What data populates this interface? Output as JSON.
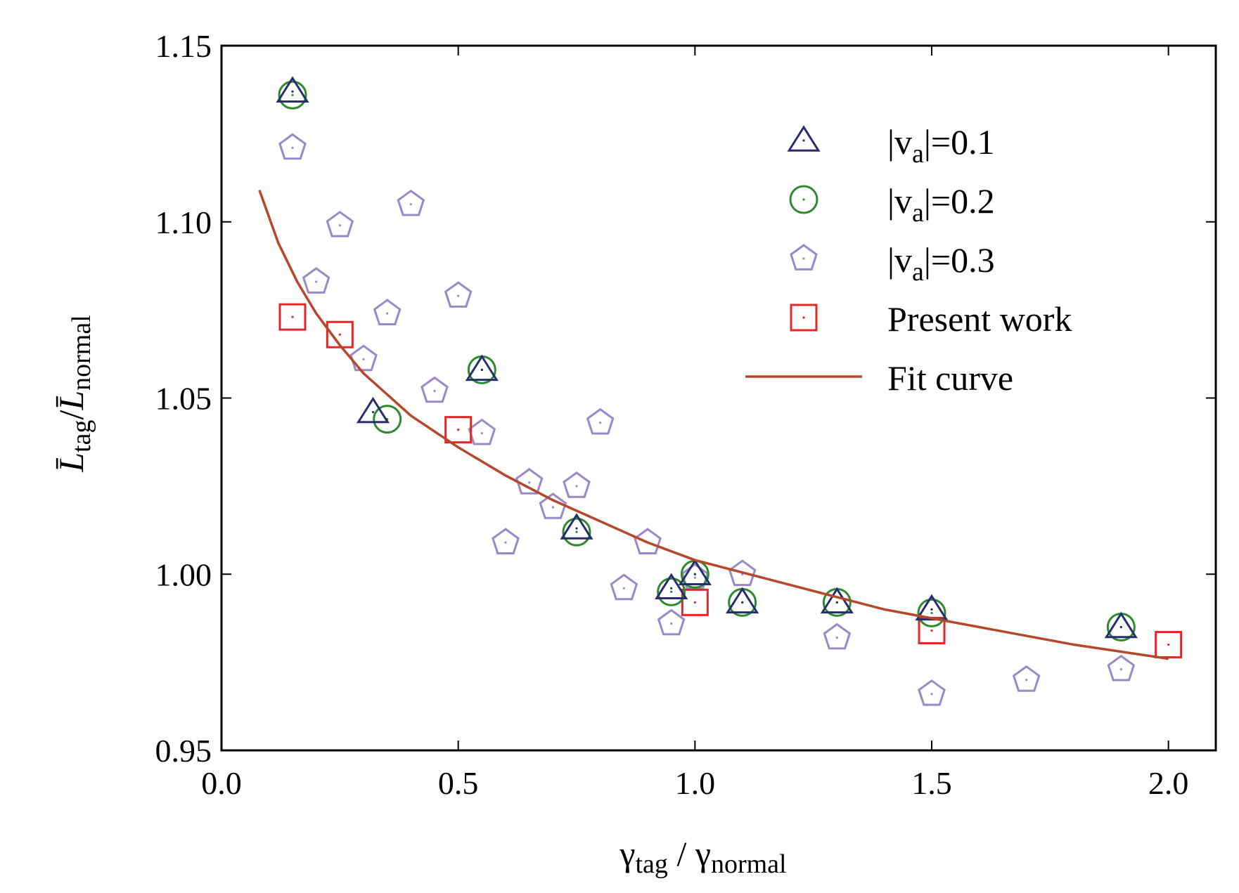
{
  "chart_data": {
    "type": "scatter",
    "title": "",
    "xlabel": {
      "main": "γ",
      "sub1": "tag",
      "sep": " / ",
      "main2": "γ",
      "sub2": "normal"
    },
    "ylabel": {
      "main": "L̄",
      "sub1": "tag",
      "sep": "/",
      "main2": "L̄",
      "sub2": "normal"
    },
    "xlim": [
      0.0,
      2.1
    ],
    "ylim": [
      0.95,
      1.15
    ],
    "xticks": [
      0.0,
      0.5,
      1.0,
      1.5,
      2.0
    ],
    "xtick_labels": [
      "0.0",
      "0.5",
      "1.0",
      "1.5",
      "2.0"
    ],
    "yticks": [
      0.95,
      1.0,
      1.05,
      1.1,
      1.15
    ],
    "ytick_labels": [
      "0.95",
      "1.00",
      "1.05",
      "1.10",
      "1.15"
    ],
    "grid": false,
    "legend_position": "top-right",
    "series": [
      {
        "name": "|va|=0.1",
        "label_main": "|v",
        "label_sub": "a",
        "label_rest": "|=0.1",
        "marker": "triangle",
        "color": "#262f6b",
        "points": [
          [
            0.15,
            1.137
          ],
          [
            0.32,
            1.046
          ],
          [
            0.55,
            1.058
          ],
          [
            0.75,
            1.013
          ],
          [
            0.95,
            0.996
          ],
          [
            1.0,
            1.0
          ],
          [
            1.1,
            0.992
          ],
          [
            1.3,
            0.992
          ],
          [
            1.5,
            0.99
          ],
          [
            1.9,
            0.985
          ]
        ]
      },
      {
        "name": "|va|=0.2",
        "label_main": "|v",
        "label_sub": "a",
        "label_rest": "|=0.2",
        "marker": "circle",
        "color": "#2e8a2e",
        "points": [
          [
            0.15,
            1.136
          ],
          [
            0.35,
            1.044
          ],
          [
            0.55,
            1.058
          ],
          [
            0.75,
            1.012
          ],
          [
            0.95,
            0.995
          ],
          [
            1.0,
            1.0
          ],
          [
            1.1,
            0.992
          ],
          [
            1.3,
            0.992
          ],
          [
            1.5,
            0.989
          ],
          [
            1.9,
            0.985
          ]
        ]
      },
      {
        "name": "|va|=0.3",
        "label_main": "|v",
        "label_sub": "a",
        "label_rest": "|=0.3",
        "marker": "pentagon",
        "color": "#9a88c8",
        "points": [
          [
            0.15,
            1.121
          ],
          [
            0.2,
            1.083
          ],
          [
            0.25,
            1.099
          ],
          [
            0.3,
            1.061
          ],
          [
            0.35,
            1.074
          ],
          [
            0.4,
            1.105
          ],
          [
            0.45,
            1.052
          ],
          [
            0.5,
            1.079
          ],
          [
            0.55,
            1.04
          ],
          [
            0.6,
            1.009
          ],
          [
            0.65,
            1.026
          ],
          [
            0.7,
            1.019
          ],
          [
            0.75,
            1.025
          ],
          [
            0.8,
            1.043
          ],
          [
            0.85,
            0.996
          ],
          [
            0.9,
            1.009
          ],
          [
            0.95,
            0.986
          ],
          [
            1.0,
            0.999
          ],
          [
            1.1,
            1.0
          ],
          [
            1.3,
            0.982
          ],
          [
            1.5,
            0.966
          ],
          [
            1.7,
            0.97
          ],
          [
            1.9,
            0.973
          ]
        ]
      },
      {
        "name": "Present work",
        "label_main": "Present work",
        "label_sub": "",
        "label_rest": "",
        "marker": "square",
        "color": "#e02828",
        "points": [
          [
            0.15,
            1.073
          ],
          [
            0.25,
            1.068
          ],
          [
            0.5,
            1.041
          ],
          [
            1.0,
            0.992
          ],
          [
            1.5,
            0.984
          ],
          [
            2.0,
            0.98
          ]
        ]
      }
    ],
    "fit_curve": {
      "name": "Fit curve",
      "color": "#b5472a",
      "x_range": [
        0.08,
        2.0
      ],
      "x": [
        0.08,
        0.12,
        0.16,
        0.2,
        0.25,
        0.3,
        0.35,
        0.4,
        0.5,
        0.6,
        0.7,
        0.8,
        0.9,
        1.0,
        1.2,
        1.4,
        1.6,
        1.8,
        2.0
      ],
      "y": [
        1.109,
        1.094,
        1.083,
        1.074,
        1.065,
        1.057,
        1.051,
        1.045,
        1.036,
        1.028,
        1.021,
        1.015,
        1.009,
        1.004,
        0.997,
        0.99,
        0.985,
        0.98,
        0.976
      ]
    }
  }
}
